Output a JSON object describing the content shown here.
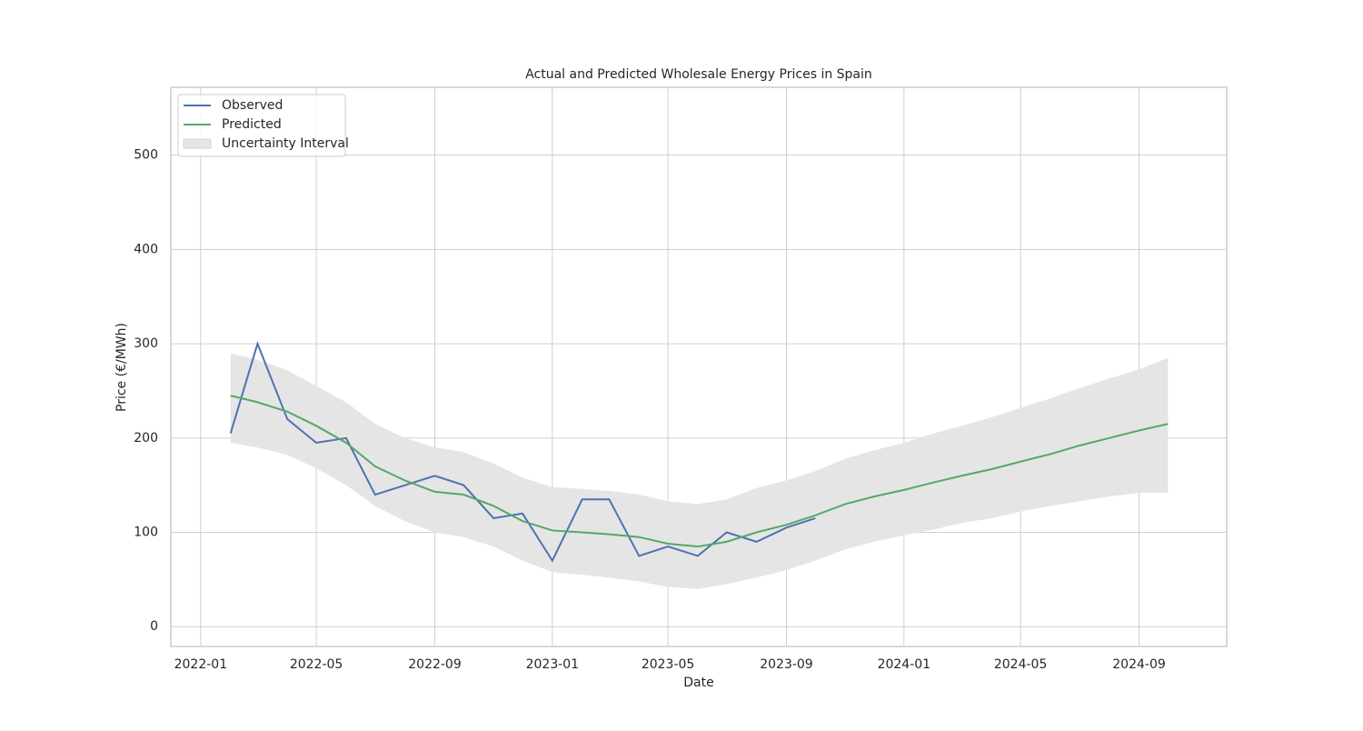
{
  "chart_data": {
    "type": "line",
    "title": "Actual and Predicted Wholesale Energy Prices in Spain",
    "x_label": "Date",
    "y_label": "Price (€/MWh)",
    "x": [
      "2022-02",
      "2022-03",
      "2022-04",
      "2022-05",
      "2022-06",
      "2022-07",
      "2022-08",
      "2022-09",
      "2022-10",
      "2022-11",
      "2022-12",
      "2023-01",
      "2023-02",
      "2023-03",
      "2023-04",
      "2023-05",
      "2023-06",
      "2023-07",
      "2023-08",
      "2023-09",
      "2023-10",
      "2023-11",
      "2023-12",
      "2024-01",
      "2024-02",
      "2024-03",
      "2024-04",
      "2024-05",
      "2024-06",
      "2024-07",
      "2024-08",
      "2024-09",
      "2024-10"
    ],
    "series": [
      {
        "name": "Observed",
        "color": "#4c72b0",
        "values": [
          205,
          300,
          220,
          195,
          200,
          140,
          150,
          160,
          150,
          115,
          120,
          70,
          135,
          135,
          75,
          85,
          75,
          100,
          90,
          105,
          115,
          null,
          null,
          null,
          null,
          null,
          null,
          null,
          null,
          null,
          null,
          null,
          null
        ]
      },
      {
        "name": "Predicted",
        "color": "#55a868",
        "values": [
          245,
          238,
          228,
          213,
          195,
          170,
          155,
          143,
          140,
          128,
          112,
          102,
          100,
          98,
          95,
          88,
          85,
          90,
          100,
          108,
          118,
          130,
          138,
          145,
          153,
          160,
          167,
          175,
          183,
          192,
          200,
          208,
          215
        ]
      }
    ],
    "band": {
      "name": "Uncertainty Interval",
      "color": "#e5e5e5",
      "upper": [
        290,
        283,
        272,
        255,
        238,
        215,
        200,
        190,
        185,
        173,
        158,
        148,
        146,
        144,
        140,
        133,
        130,
        135,
        147,
        155,
        165,
        178,
        187,
        195,
        205,
        213,
        222,
        232,
        242,
        253,
        263,
        273,
        285
      ],
      "lower": [
        195,
        190,
        182,
        168,
        150,
        128,
        112,
        100,
        95,
        85,
        70,
        58,
        55,
        52,
        48,
        42,
        40,
        45,
        52,
        60,
        70,
        82,
        90,
        97,
        103,
        110,
        115,
        122,
        128,
        133,
        138,
        142,
        142
      ]
    },
    "xlim": [
      "2021-12",
      "2024-12"
    ],
    "xticks": [
      "2022-01",
      "2022-05",
      "2022-09",
      "2023-01",
      "2023-05",
      "2023-09",
      "2024-01",
      "2024-05",
      "2024-09"
    ],
    "ylim": [
      -21,
      572
    ],
    "yticks": [
      0,
      100,
      200,
      300,
      400,
      500
    ],
    "grid": true,
    "legend": "upper left"
  }
}
